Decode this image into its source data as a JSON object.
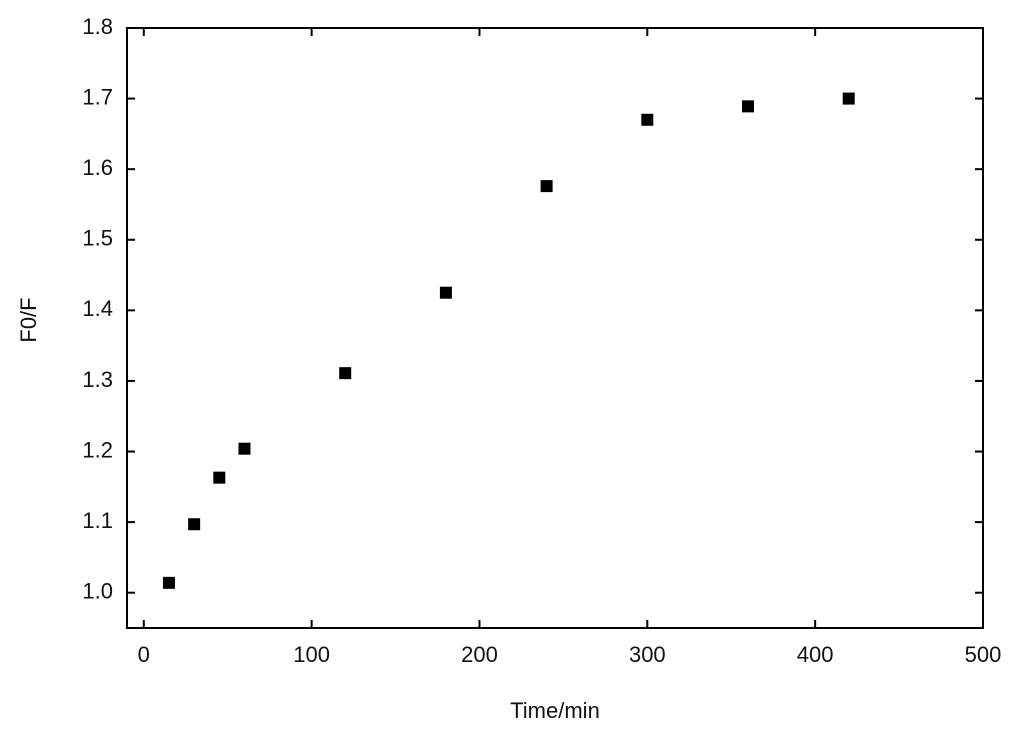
{
  "chart_data": {
    "type": "scatter",
    "x_label": "Time/min",
    "y_label": "F0/F",
    "x": [
      15,
      30,
      45,
      60,
      120,
      180,
      240,
      300,
      360,
      420
    ],
    "values": [
      1.014,
      1.097,
      1.163,
      1.204,
      1.311,
      1.425,
      1.576,
      1.67,
      1.689,
      1.7
    ],
    "color": "#000000",
    "xlim": [
      -10,
      500
    ],
    "ylim": [
      0.95,
      1.8
    ],
    "xticks": [
      0,
      100,
      200,
      300,
      400,
      500
    ],
    "yticks": [
      {
        "value": 1,
        "label": "1.0"
      },
      1.1,
      1.2,
      1.3,
      1.4,
      1.5,
      1.6,
      1.7,
      1.8
    ],
    "grid": false
  }
}
